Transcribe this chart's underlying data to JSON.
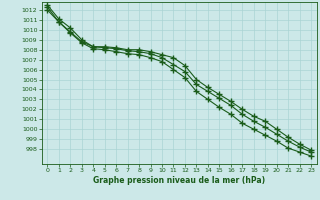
{
  "title": "Graphe pression niveau de la mer (hPa)",
  "bg_color": "#cce8e8",
  "line_color": "#1a5c1a",
  "grid_color": "#aad4d4",
  "x_values": [
    0,
    1,
    2,
    3,
    4,
    5,
    6,
    7,
    8,
    9,
    10,
    11,
    12,
    13,
    14,
    15,
    16,
    17,
    18,
    19,
    20,
    21,
    22,
    23
  ],
  "line1": [
    1012.5,
    1011.1,
    1010.2,
    1009.0,
    1008.3,
    1008.3,
    1008.2,
    1008.0,
    1008.0,
    1007.8,
    1007.5,
    1007.2,
    1006.4,
    1005.0,
    1004.2,
    1003.5,
    1002.8,
    1002.0,
    1001.3,
    1000.8,
    1000.0,
    999.2,
    998.5,
    997.9
  ],
  "line2": [
    1012.3,
    1010.8,
    1009.8,
    1008.8,
    1008.3,
    1008.2,
    1008.1,
    1007.9,
    1007.8,
    1007.6,
    1007.2,
    1006.5,
    1005.8,
    1004.5,
    1003.8,
    1003.1,
    1002.4,
    1001.5,
    1000.8,
    1000.2,
    999.5,
    998.8,
    998.2,
    997.7
  ],
  "line3": [
    1012.0,
    1010.8,
    1009.7,
    1008.7,
    1008.1,
    1008.0,
    1007.8,
    1007.6,
    1007.5,
    1007.2,
    1006.8,
    1006.0,
    1005.2,
    1003.8,
    1003.0,
    1002.2,
    1001.5,
    1000.6,
    1000.0,
    999.4,
    998.8,
    998.1,
    997.7,
    997.3
  ],
  "ylim_min": 996.5,
  "ylim_max": 1012.8,
  "yticks": [
    998,
    999,
    1000,
    1001,
    1002,
    1003,
    1004,
    1005,
    1006,
    1007,
    1008,
    1009,
    1010,
    1011,
    1012
  ],
  "xticks": [
    0,
    1,
    2,
    3,
    4,
    5,
    6,
    7,
    8,
    9,
    10,
    11,
    12,
    13,
    14,
    15,
    16,
    17,
    18,
    19,
    20,
    21,
    22,
    23
  ]
}
